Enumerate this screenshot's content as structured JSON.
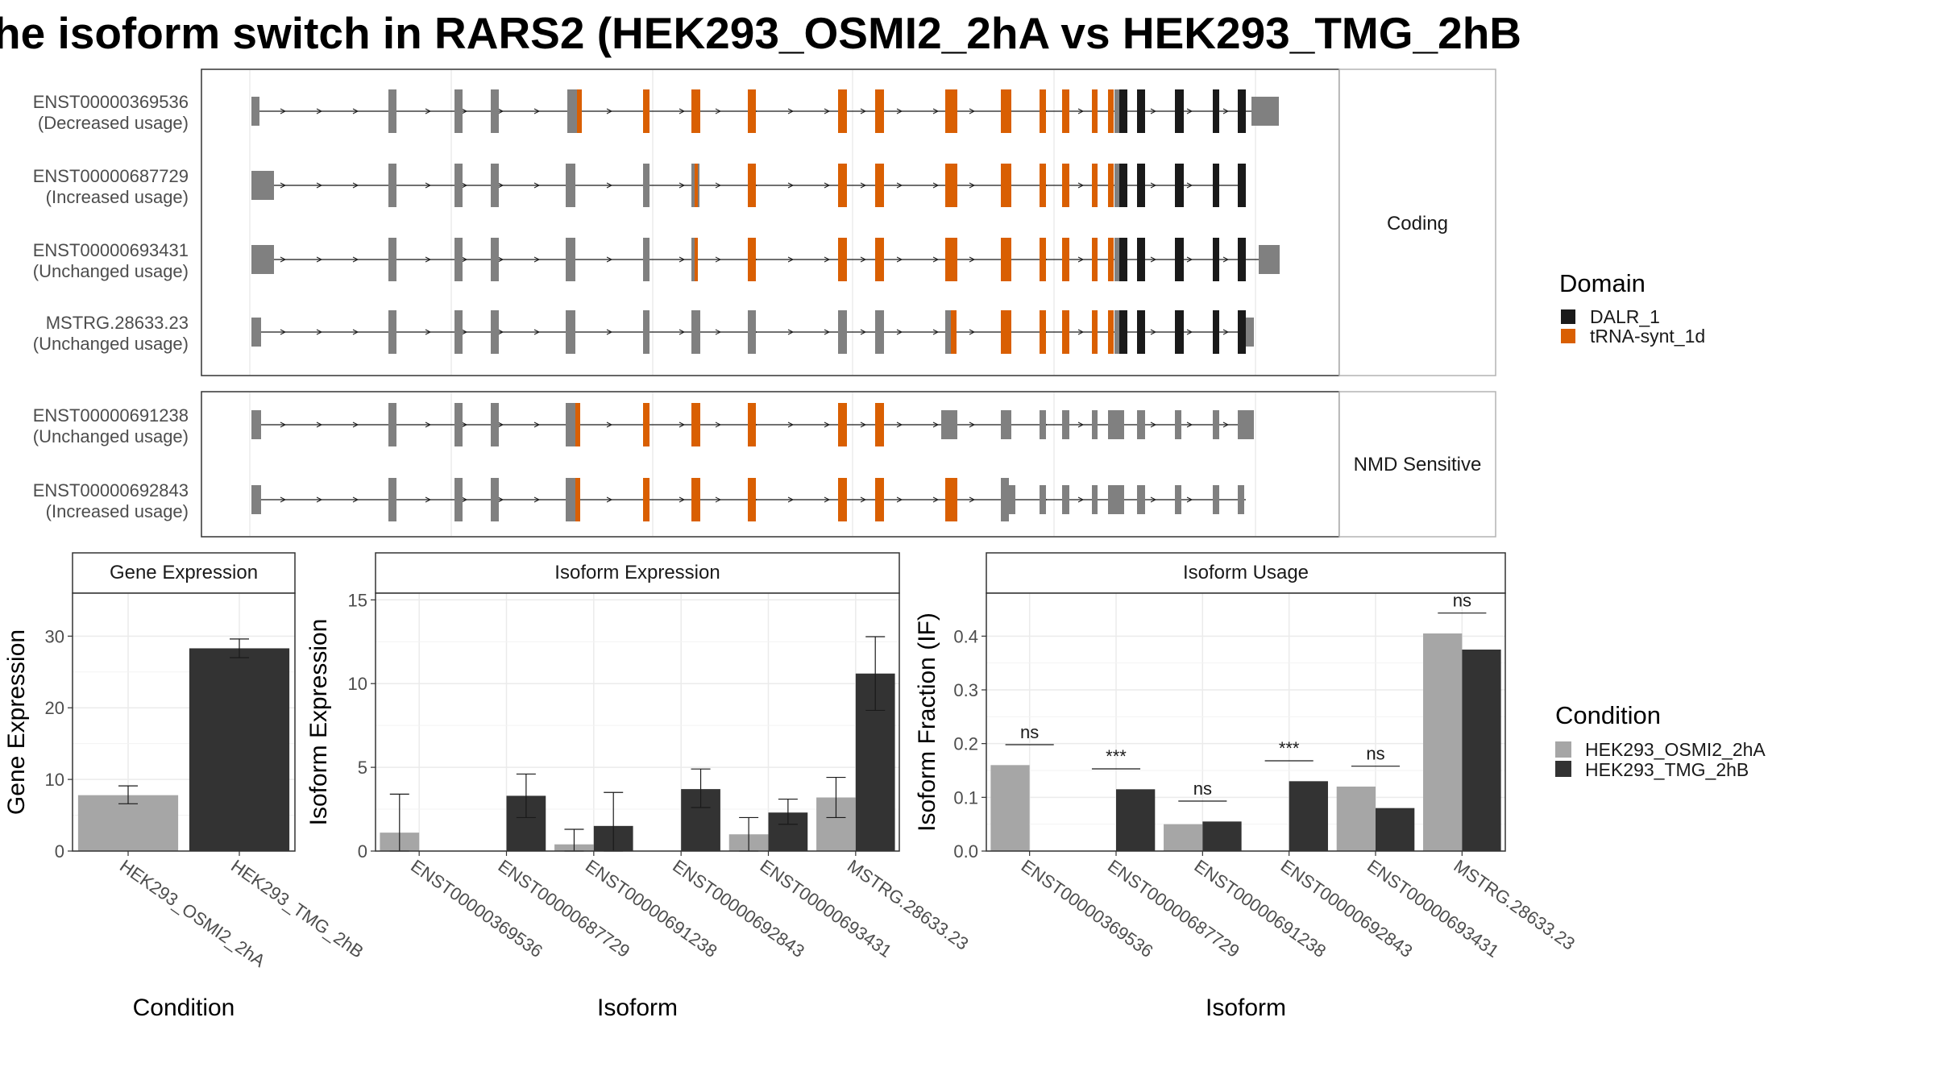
{
  "title": "he isoform switch in RARS2 (HEK293_OSMI2_2hA vs HEK293_TMG_2hB",
  "colors": {
    "exon_default": "#808080",
    "DALR_1": "#1a1a1a",
    "tRNA-synt_1d": "#d95f02",
    "cond_a": "#a6a6a6",
    "cond_b": "#333333"
  },
  "structure": {
    "facets": [
      "Coding",
      "NMD Sensitive"
    ],
    "transcripts": [
      {
        "id": "ENST00000369536",
        "usage": "(Decreased usage)",
        "facet": "Coding"
      },
      {
        "id": "ENST00000687729",
        "usage": "(Increased usage)",
        "facet": "Coding"
      },
      {
        "id": "ENST00000693431",
        "usage": "(Unchanged usage)",
        "facet": "Coding"
      },
      {
        "id": "MSTRG.28633.23",
        "usage": "(Unchanged usage)",
        "facet": "Coding"
      },
      {
        "id": "ENST00000691238",
        "usage": "(Unchanged usage)",
        "facet": "NMD Sensitive"
      },
      {
        "id": "ENST00000692843",
        "usage": "(Increased usage)",
        "facet": "NMD Sensitive"
      }
    ]
  },
  "legend_domain": {
    "title": "Domain",
    "items": [
      {
        "label": "DALR_1",
        "color": "#1a1a1a"
      },
      {
        "label": "tRNA-synt_1d",
        "color": "#d95f02"
      }
    ]
  },
  "legend_condition": {
    "title": "Condition",
    "items": [
      {
        "label": "HEK293_OSMI2_2hA",
        "color": "#a6a6a6"
      },
      {
        "label": "HEK293_TMG_2hB",
        "color": "#333333"
      }
    ]
  },
  "chart_data": [
    {
      "type": "bar",
      "panel": "Gene Expression",
      "categories": [
        "HEK293_OSMI2_2hA",
        "HEK293_TMG_2hB"
      ],
      "values": [
        7.8,
        28.3
      ],
      "error": [
        [
          6.6,
          9.1
        ],
        [
          27.0,
          29.6
        ]
      ],
      "xlabel": "Condition",
      "ylabel": "Gene Expression",
      "ylim": [
        0,
        36
      ],
      "yticks": [
        0,
        10,
        20,
        30
      ]
    },
    {
      "type": "bar",
      "panel": "Isoform Expression",
      "categories": [
        "ENST00000369536",
        "ENST00000687729",
        "ENST00000691238",
        "ENST00000692843",
        "ENST00000693431",
        "MSTRG.28633.23"
      ],
      "series": [
        {
          "name": "HEK293_OSMI2_2hA",
          "values": [
            1.1,
            0.0,
            0.4,
            0.0,
            1.0,
            3.2
          ],
          "error": [
            [
              0.0,
              3.4
            ],
            null,
            [
              0.0,
              1.3
            ],
            null,
            [
              0.0,
              2.0
            ],
            [
              2.0,
              4.4
            ]
          ]
        },
        {
          "name": "HEK293_TMG_2hB",
          "values": [
            0.0,
            3.3,
            1.5,
            3.7,
            2.3,
            10.6
          ],
          "error": [
            null,
            [
              2.0,
              4.6
            ],
            [
              0.0,
              3.5
            ],
            [
              2.6,
              4.9
            ],
            [
              1.6,
              3.1
            ],
            [
              8.4,
              12.8
            ]
          ]
        }
      ],
      "xlabel": "Isoform",
      "ylabel": "Isoform Expression",
      "ylim": [
        0,
        15.4
      ],
      "yticks": [
        0,
        5,
        10,
        15
      ]
    },
    {
      "type": "bar",
      "panel": "Isoform Usage",
      "categories": [
        "ENST00000369536",
        "ENST00000687729",
        "ENST00000691238",
        "ENST00000692843",
        "ENST00000693431",
        "MSTRG.28633.23"
      ],
      "series": [
        {
          "name": "HEK293_OSMI2_2hA",
          "values": [
            0.16,
            0.0,
            0.05,
            0.0,
            0.12,
            0.405
          ]
        },
        {
          "name": "HEK293_TMG_2hB",
          "values": [
            0.0,
            0.115,
            0.055,
            0.13,
            0.08,
            0.375
          ]
        }
      ],
      "significance": [
        "ns",
        "***",
        "ns",
        "***",
        "ns",
        "ns"
      ],
      "xlabel": "Isoform",
      "ylabel": "Isoform Fraction (IF)",
      "ylim": [
        0,
        0.48
      ],
      "yticks": [
        "0.0",
        "0.1",
        "0.2",
        "0.3",
        "0.4"
      ]
    }
  ]
}
